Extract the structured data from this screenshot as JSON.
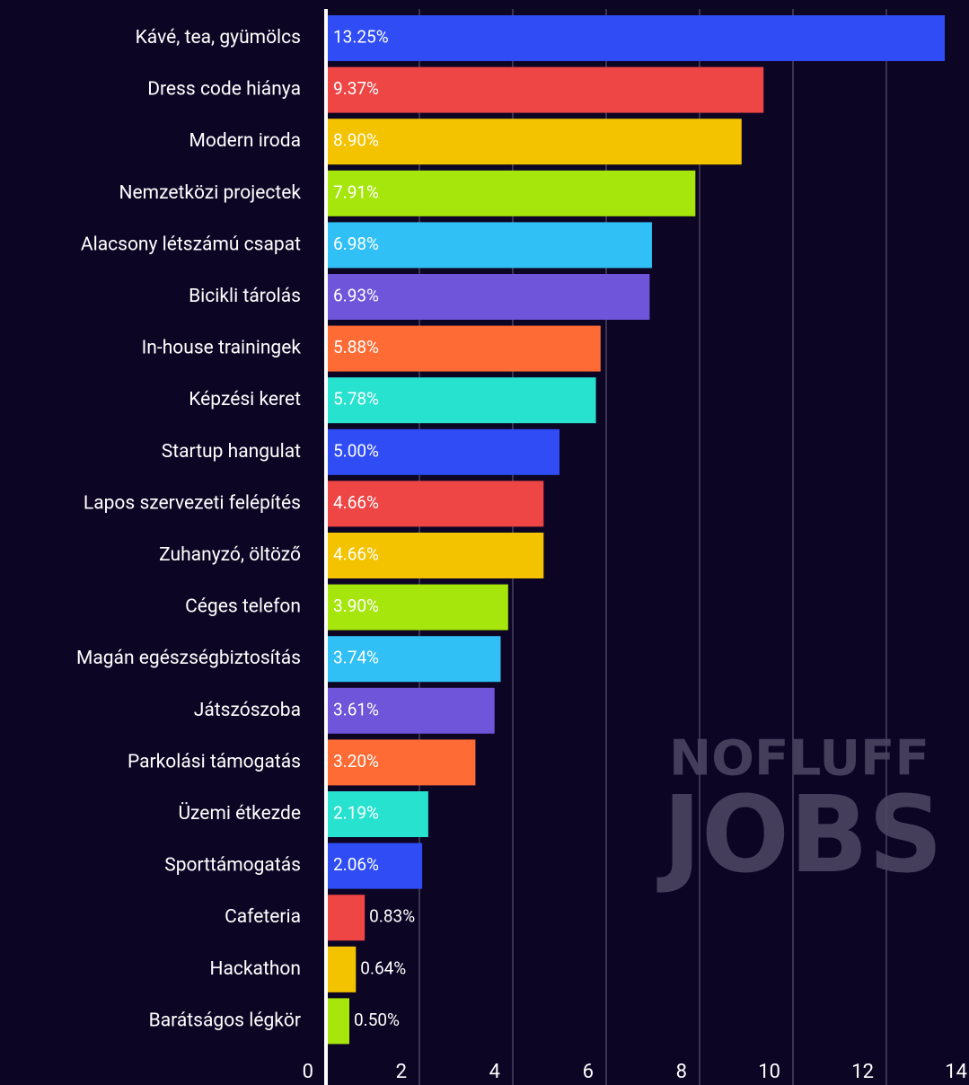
{
  "chart_data": {
    "type": "hbar",
    "categories": [
      "Kávé, tea, gyümölcs",
      "Dress code hiánya",
      "Modern iroda",
      "Nemzetközi projectek",
      "Alacsony létszámú csapat",
      "Bicikli tárolás",
      "In-house trainingek",
      "Képzési keret",
      "Startup hangulat",
      "Lapos szervezeti felépítés",
      "Zuhanyzó, öltöző",
      "Céges telefon",
      "Magán egészségbiztosítás",
      "Játszószoba",
      "Parkolási támogatás",
      "Üzemi étkezde",
      "Sporttámogatás",
      "Cafeteria",
      "Hackathon",
      "Barátságos légkör"
    ],
    "values": [
      13.25,
      9.37,
      8.9,
      7.91,
      6.98,
      6.93,
      5.88,
      5.78,
      5.0,
      4.66,
      4.66,
      3.9,
      3.74,
      3.61,
      3.2,
      2.19,
      2.06,
      0.83,
      0.64,
      0.5
    ],
    "value_labels": [
      "13.25%",
      "9.37%",
      "8.90%",
      "7.91%",
      "6.98%",
      "6.93%",
      "5.88%",
      "5.78%",
      "5.00%",
      "4.66%",
      "4.66%",
      "3.90%",
      "3.74%",
      "3.61%",
      "3.20%",
      "2.19%",
      "2.06%",
      "0.83%",
      "0.64%",
      "0.50%"
    ],
    "colors": [
      "#2f4cf5",
      "#ee4545",
      "#f3c300",
      "#a6e60c",
      "#31c0f5",
      "#6e55d9",
      "#ff6b35",
      "#28e2d0",
      "#2f4cf5",
      "#ee4545",
      "#f3c300",
      "#a6e60c",
      "#31c0f5",
      "#6e55d9",
      "#ff6b35",
      "#28e2d0",
      "#2f4cf5",
      "#ee4545",
      "#f3c300",
      "#a6e60c"
    ],
    "xlim": [
      0,
      14
    ],
    "xticks": [
      0,
      2,
      4,
      6,
      8,
      10,
      12,
      14
    ],
    "grid": true
  },
  "watermark": {
    "line1": "NOFLUFF",
    "line2": "JOBS"
  }
}
